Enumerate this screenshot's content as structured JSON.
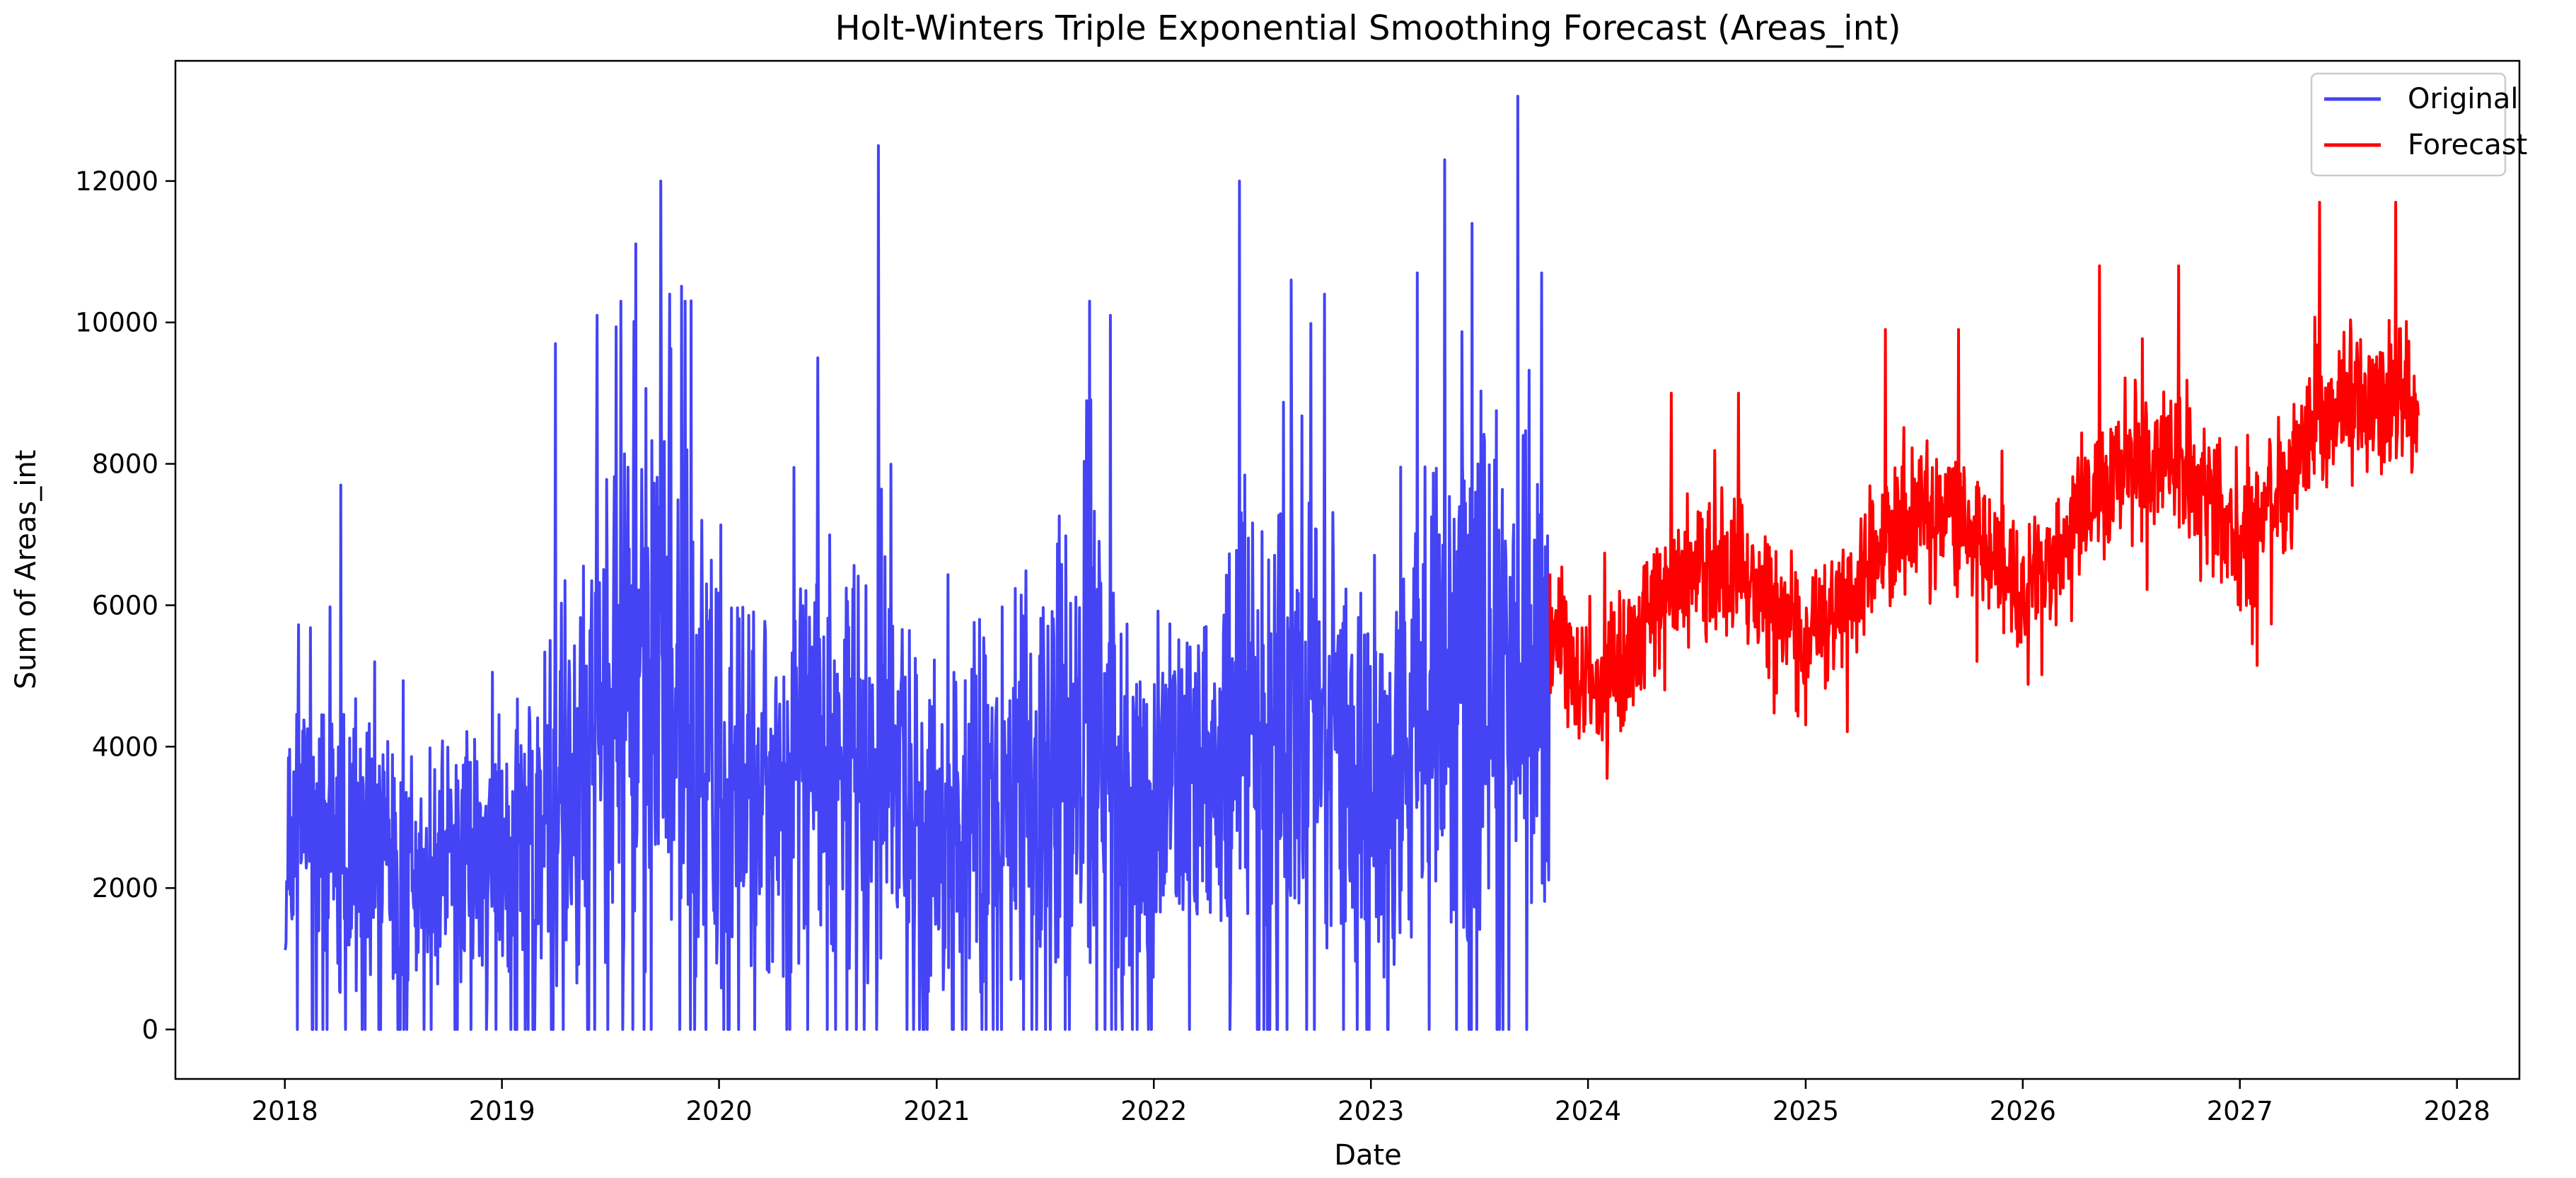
{
  "chart_data": {
    "type": "line",
    "title": "Holt-Winters Triple Exponential Smoothing Forecast (Areas_int)",
    "xlabel": "Date",
    "ylabel": "Sum of Areas_int",
    "xlim": [
      "2017-07-01",
      "2028-04-15"
    ],
    "ylim": [
      -700,
      13700
    ],
    "x_ticks": [
      "2018",
      "2019",
      "2020",
      "2021",
      "2022",
      "2023",
      "2024",
      "2025",
      "2026",
      "2027",
      "2028"
    ],
    "y_ticks": [
      0,
      2000,
      4000,
      6000,
      8000,
      10000,
      12000
    ],
    "grid": false,
    "legend": {
      "position": "top-right",
      "entries": [
        "Original",
        "Forecast"
      ]
    },
    "series": [
      {
        "name": "Original",
        "color": "#4444f5",
        "points": [
          [
            "2018-01-01",
            1400
          ],
          [
            "2018-02-01",
            3000
          ],
          [
            "2018-03-01",
            2600
          ],
          [
            "2018-04-01",
            2500
          ],
          [
            "2018-05-01",
            2200
          ],
          [
            "2018-06-01",
            2500
          ],
          [
            "2018-07-01",
            2200
          ],
          [
            "2018-08-01",
            2100
          ],
          [
            "2018-09-01",
            1900
          ],
          [
            "2018-10-01",
            2200
          ],
          [
            "2018-11-01",
            2600
          ],
          [
            "2018-12-01",
            2400
          ],
          [
            "2019-01-01",
            2300
          ],
          [
            "2019-02-01",
            2700
          ],
          [
            "2019-03-01",
            3000
          ],
          [
            "2019-04-01",
            3200
          ],
          [
            "2019-05-01",
            3200
          ],
          [
            "2019-06-01",
            3800
          ],
          [
            "2019-07-01",
            4500
          ],
          [
            "2019-08-01",
            4800
          ],
          [
            "2019-09-01",
            4800
          ],
          [
            "2019-10-01",
            5000
          ],
          [
            "2019-11-01",
            4600
          ],
          [
            "2019-12-01",
            4000
          ],
          [
            "2020-01-01",
            3200
          ],
          [
            "2020-02-01",
            3300
          ],
          [
            "2020-03-01",
            3200
          ],
          [
            "2020-04-01",
            3000
          ],
          [
            "2020-05-01",
            3500
          ],
          [
            "2020-06-01",
            3800
          ],
          [
            "2020-07-01",
            3600
          ],
          [
            "2020-08-01",
            3500
          ],
          [
            "2020-09-01",
            3500
          ],
          [
            "2020-10-01",
            3700
          ],
          [
            "2020-11-01",
            3300
          ],
          [
            "2020-12-01",
            3000
          ],
          [
            "2021-01-01",
            2800
          ],
          [
            "2021-02-01",
            2800
          ],
          [
            "2021-03-01",
            3000
          ],
          [
            "2021-04-01",
            3100
          ],
          [
            "2021-05-01",
            3200
          ],
          [
            "2021-06-01",
            3600
          ],
          [
            "2021-07-01",
            3700
          ],
          [
            "2021-08-01",
            3600
          ],
          [
            "2021-09-01",
            3700
          ],
          [
            "2021-10-01",
            3900
          ],
          [
            "2021-11-01",
            3500
          ],
          [
            "2021-12-01",
            3200
          ],
          [
            "2022-01-01",
            3000
          ],
          [
            "2022-02-01",
            3100
          ],
          [
            "2022-03-01",
            3300
          ],
          [
            "2022-04-01",
            3600
          ],
          [
            "2022-05-01",
            3900
          ],
          [
            "2022-06-01",
            4300
          ],
          [
            "2022-07-01",
            4100
          ],
          [
            "2022-08-01",
            4000
          ],
          [
            "2022-09-01",
            4100
          ],
          [
            "2022-10-01",
            4300
          ],
          [
            "2022-11-01",
            3900
          ],
          [
            "2022-12-01",
            3600
          ],
          [
            "2023-01-01",
            3500
          ],
          [
            "2023-02-01",
            3600
          ],
          [
            "2023-03-01",
            3900
          ],
          [
            "2023-04-01",
            4200
          ],
          [
            "2023-05-01",
            4500
          ],
          [
            "2023-06-01",
            4900
          ],
          [
            "2023-07-01",
            5000
          ],
          [
            "2023-08-01",
            5000
          ],
          [
            "2023-09-01",
            4900
          ],
          [
            "2023-10-01",
            4700
          ],
          [
            "2023-10-28",
            4600
          ]
        ],
        "spikes": [
          [
            "2018-04-05",
            7700
          ],
          [
            "2018-06-01",
            5200
          ],
          [
            "2019-04-01",
            9700
          ],
          [
            "2019-06-10",
            10100
          ],
          [
            "2019-07-20",
            10300
          ],
          [
            "2019-09-25",
            12000
          ],
          [
            "2019-10-10",
            10400
          ],
          [
            "2019-11-05",
            10300
          ],
          [
            "2020-06-15",
            9500
          ],
          [
            "2020-09-25",
            12500
          ],
          [
            "2021-09-15",
            10300
          ],
          [
            "2021-10-20",
            10100
          ],
          [
            "2022-05-25",
            12000
          ],
          [
            "2022-08-20",
            10600
          ],
          [
            "2022-10-15",
            10400
          ],
          [
            "2023-03-20",
            10700
          ],
          [
            "2023-05-05",
            12300
          ],
          [
            "2023-06-20",
            11400
          ],
          [
            "2023-09-05",
            13200
          ],
          [
            "2023-10-15",
            10700
          ]
        ],
        "variability": {
          "low_floor": 0,
          "high_factor": 1.9
        }
      },
      {
        "name": "Forecast",
        "color": "#ff0000",
        "points": [
          [
            "2023-10-29",
            5600
          ],
          [
            "2024-01-01",
            4800
          ],
          [
            "2024-03-01",
            5100
          ],
          [
            "2024-05-01",
            6100
          ],
          [
            "2024-07-01",
            6400
          ],
          [
            "2024-09-01",
            6500
          ],
          [
            "2024-11-01",
            6000
          ],
          [
            "2025-01-01",
            5500
          ],
          [
            "2025-03-01",
            5900
          ],
          [
            "2025-05-01",
            6800
          ],
          [
            "2025-07-01",
            7200
          ],
          [
            "2025-09-01",
            7300
          ],
          [
            "2025-11-01",
            6800
          ],
          [
            "2026-01-01",
            6300
          ],
          [
            "2026-03-01",
            6700
          ],
          [
            "2026-05-01",
            7700
          ],
          [
            "2026-07-01",
            8000
          ],
          [
            "2026-09-01",
            8100
          ],
          [
            "2026-11-01",
            7600
          ],
          [
            "2027-01-01",
            7100
          ],
          [
            "2027-03-01",
            7500
          ],
          [
            "2027-05-01",
            8500
          ],
          [
            "2027-07-01",
            8900
          ],
          [
            "2027-09-01",
            9000
          ],
          [
            "2027-10-28",
            8800
          ]
        ],
        "spikes": [
          [
            "2024-05-20",
            9000
          ],
          [
            "2024-09-10",
            9000
          ],
          [
            "2025-05-15",
            9900
          ],
          [
            "2025-09-15",
            9900
          ],
          [
            "2026-05-10",
            10800
          ],
          [
            "2026-09-20",
            10800
          ],
          [
            "2027-05-15",
            11700
          ],
          [
            "2027-09-20",
            11700
          ]
        ],
        "variability": {
          "low_floor": 2400,
          "band": 1500
        }
      }
    ]
  }
}
